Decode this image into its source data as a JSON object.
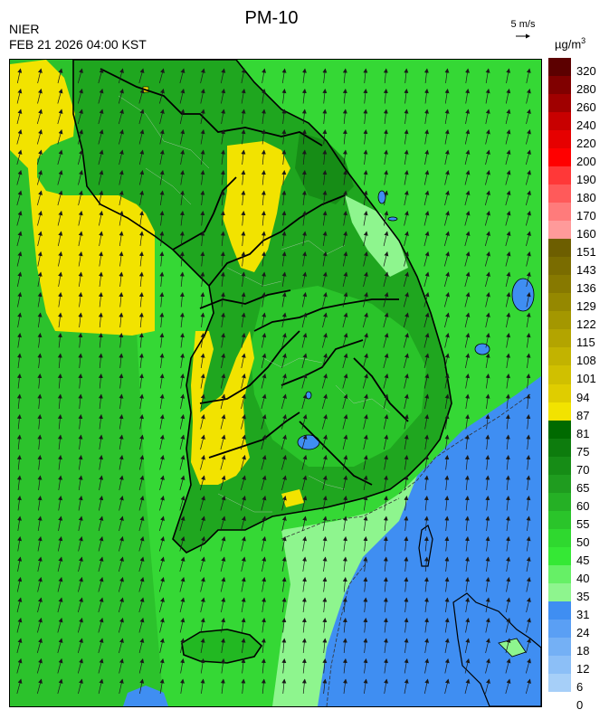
{
  "header": {
    "org": "NIER",
    "timestamp": "FEB 21 2026 04:00 KST",
    "title": "PM-10",
    "wind_reference": "5 m/s",
    "unit_prefix": "µg/m",
    "unit_exponent": "3"
  },
  "legend": {
    "labels": [
      "320",
      "280",
      "260",
      "240",
      "220",
      "200",
      "190",
      "180",
      "170",
      "160",
      "151",
      "143",
      "136",
      "129",
      "122",
      "115",
      "108",
      "101",
      "94",
      "87",
      "81",
      "75",
      "70",
      "65",
      "60",
      "55",
      "50",
      "45",
      "40",
      "35",
      "31",
      "24",
      "18",
      "12",
      "6",
      "0"
    ],
    "colors": [
      "#5c0000",
      "#800000",
      "#a00000",
      "#c80000",
      "#e60000",
      "#ff0000",
      "#ff3838",
      "#ff5a5a",
      "#ff7b7b",
      "#ff9a9a",
      "#6d5e00",
      "#7a6c00",
      "#877900",
      "#958800",
      "#a49700",
      "#b3a400",
      "#c2b300",
      "#d0c000",
      "#dfcd00",
      "#f2e300",
      "#006a00",
      "#0d7c0d",
      "#168c16",
      "#1f9c1f",
      "#25b025",
      "#2ac42a",
      "#2fd82f",
      "#35e835",
      "#66f066",
      "#8ef58e",
      "#3f8ef2",
      "#5a9ff4",
      "#74b0f5",
      "#8cbff7",
      "#a6cff8"
    ]
  },
  "map": {
    "sea_color": "#35d835",
    "land_color": "#22b822",
    "yellow_color": "#f2e300",
    "blue_color": "#3f8ef2",
    "lightgreen_color": "#8ef58e",
    "arrow_color": "#1a1a1a",
    "wind_direction": "north-northeast",
    "feature_names": [
      "korea-peninsula",
      "jeju-island",
      "japan-coast",
      "yellow-zone-northwest",
      "yellow-zone-capital",
      "yellow-zone-west-coast",
      "blue-zone-east-sea"
    ]
  }
}
